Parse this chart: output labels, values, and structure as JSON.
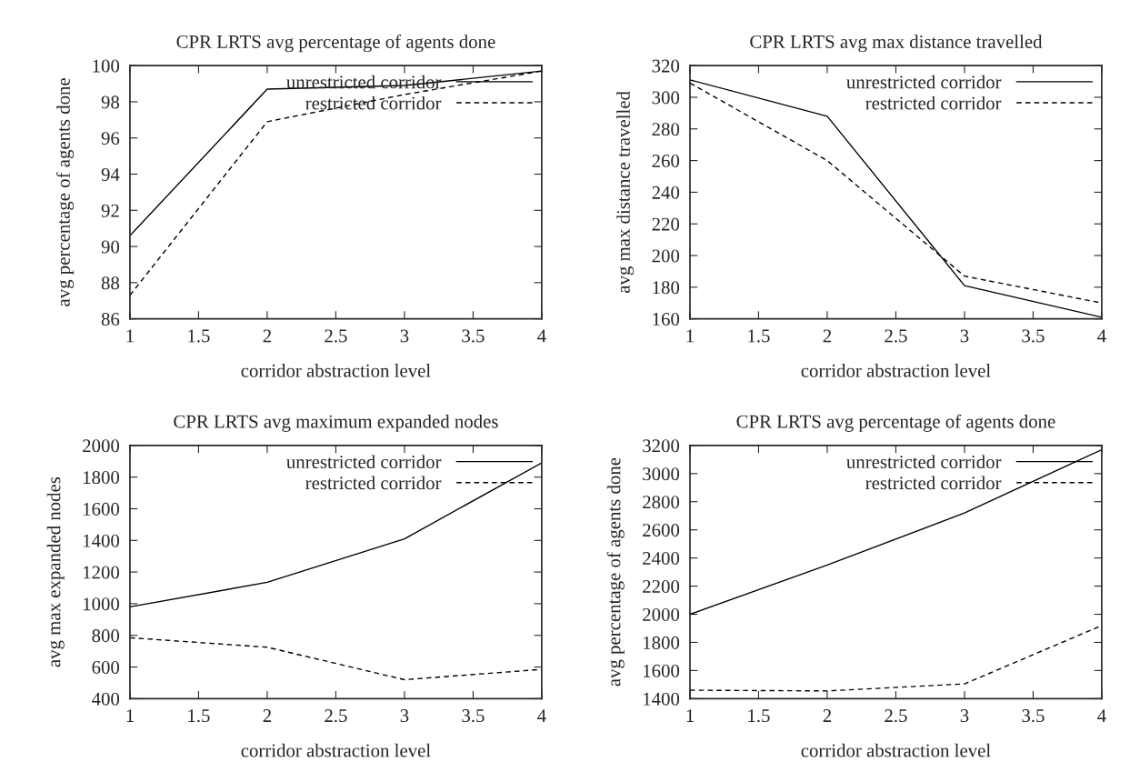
{
  "chart_data": [
    {
      "type": "line",
      "title": "CPR LRTS avg percentage of agents done",
      "xlabel": "corridor abstraction level",
      "ylabel": "avg percentage of agents done",
      "x": [
        1,
        2,
        3,
        4
      ],
      "xlim": [
        1,
        4
      ],
      "xticks": [
        1,
        1.5,
        2,
        2.5,
        3,
        3.5,
        4
      ],
      "ylim": [
        86,
        100
      ],
      "yticks": [
        86,
        88,
        90,
        92,
        94,
        96,
        98,
        100
      ],
      "grid": false,
      "legend": "top right",
      "marker": "none",
      "series": [
        {
          "name": "unrestricted corridor",
          "color": "#000000",
          "line_style": "solid",
          "values": [
            90.6,
            98.7,
            98.9,
            99.7
          ]
        },
        {
          "name": "restricted corridor",
          "color": "#000000",
          "line_style": "dashed",
          "values": [
            87.3,
            96.9,
            98.4,
            99.7
          ]
        }
      ]
    },
    {
      "type": "line",
      "title": "CPR LRTS avg max distance travelled",
      "xlabel": "corridor abstraction level",
      "ylabel": "avg max distance travelled",
      "x": [
        1,
        2,
        3,
        4
      ],
      "xlim": [
        1,
        4
      ],
      "xticks": [
        1,
        1.5,
        2,
        2.5,
        3,
        3.5,
        4
      ],
      "ylim": [
        160,
        320
      ],
      "yticks": [
        160,
        180,
        200,
        220,
        240,
        260,
        280,
        300,
        320
      ],
      "grid": false,
      "legend": "top right",
      "marker": "none",
      "series": [
        {
          "name": "unrestricted corridor",
          "color": "#000000",
          "line_style": "solid",
          "values": [
            311,
            288,
            181,
            161
          ]
        },
        {
          "name": "restricted corridor",
          "color": "#000000",
          "line_style": "dashed",
          "values": [
            309,
            260,
            187,
            170
          ]
        }
      ]
    },
    {
      "type": "line",
      "title": "CPR LRTS avg maximum expanded nodes",
      "xlabel": "corridor abstraction level",
      "ylabel": "avg max expanded nodes",
      "x": [
        1,
        2,
        3,
        4
      ],
      "xlim": [
        1,
        4
      ],
      "xticks": [
        1,
        1.5,
        2,
        2.5,
        3,
        3.5,
        4
      ],
      "ylim": [
        400,
        2000
      ],
      "yticks": [
        400,
        600,
        800,
        1000,
        1200,
        1400,
        1600,
        1800,
        2000
      ],
      "grid": false,
      "legend": "top right",
      "marker": "none",
      "series": [
        {
          "name": "unrestricted corridor",
          "color": "#000000",
          "line_style": "solid",
          "values": [
            980,
            1135,
            1410,
            1890
          ]
        },
        {
          "name": "restricted corridor",
          "color": "#000000",
          "line_style": "dashed",
          "values": [
            785,
            725,
            520,
            585
          ]
        }
      ]
    },
    {
      "type": "line",
      "title": "CPR LRTS avg percentage of agents done",
      "xlabel": "corridor abstraction level",
      "ylabel": "avg percentage of agents done",
      "x": [
        1,
        2,
        3,
        4
      ],
      "xlim": [
        1,
        4
      ],
      "xticks": [
        1,
        1.5,
        2,
        2.5,
        3,
        3.5,
        4
      ],
      "ylim": [
        1400,
        3200
      ],
      "yticks": [
        1400,
        1600,
        1800,
        2000,
        2200,
        2400,
        2600,
        2800,
        3000,
        3200
      ],
      "grid": false,
      "legend": "top right",
      "marker": "none",
      "series": [
        {
          "name": "unrestricted corridor",
          "color": "#000000",
          "line_style": "solid",
          "values": [
            2000,
            2350,
            2720,
            3170
          ]
        },
        {
          "name": "restricted corridor",
          "color": "#000000",
          "line_style": "dashed",
          "values": [
            1460,
            1455,
            1505,
            1920
          ]
        }
      ]
    }
  ]
}
